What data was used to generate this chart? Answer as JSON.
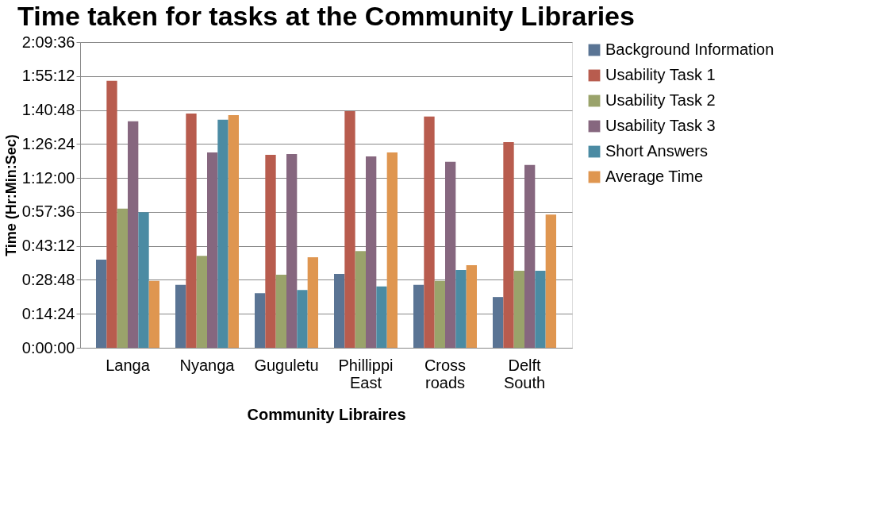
{
  "chart_data": {
    "type": "bar",
    "title": "Time taken for tasks at the Community  Libraries",
    "xlabel": "Community Libraires",
    "ylabel": "Time (Hr:Min:Sec)",
    "categories": [
      "Langa",
      "Nyanga",
      "Guguletu",
      "Phillippi East",
      "Cross roads",
      "Delft South"
    ],
    "series": [
      {
        "name": "Background Information",
        "color": "#5a7494",
        "values": [
          2240,
          1600,
          1390,
          1880,
          1600,
          1290
        ]
      },
      {
        "name": "Usability Task 1",
        "color": "#b85c4e",
        "values": [
          6790,
          5960,
          4910,
          6020,
          5880,
          5230
        ]
      },
      {
        "name": "Usability Task 2",
        "color": "#9aa36b",
        "values": [
          3540,
          2340,
          1860,
          2460,
          1700,
          1960
        ]
      },
      {
        "name": "Usability Task 3",
        "color": "#86677f",
        "values": [
          5760,
          4970,
          4930,
          4870,
          4730,
          4650
        ]
      },
      {
        "name": "Short Answers",
        "color": "#4b8ba3",
        "values": [
          3450,
          5800,
          1470,
          1560,
          1980,
          1960
        ]
      },
      {
        "name": "Average Time",
        "color": "#df9650",
        "values": [
          1700,
          5920,
          2300,
          4970,
          2100,
          3390
        ]
      }
    ],
    "ylim": [
      0,
      7776
    ],
    "yticks": [
      {
        "value": 0,
        "label": "0:00:00"
      },
      {
        "value": 864,
        "label": "0:14:24"
      },
      {
        "value": 1728,
        "label": "0:28:48"
      },
      {
        "value": 2592,
        "label": "0:43:12"
      },
      {
        "value": 3456,
        "label": "0:57:36"
      },
      {
        "value": 4320,
        "label": "1:12:00"
      },
      {
        "value": 5184,
        "label": "1:26:24"
      },
      {
        "value": 6048,
        "label": "1:40:48"
      },
      {
        "value": 6912,
        "label": "1:55:12"
      },
      {
        "value": 7776,
        "label": "2:09:36"
      }
    ],
    "grid": "y",
    "legend": "right"
  }
}
